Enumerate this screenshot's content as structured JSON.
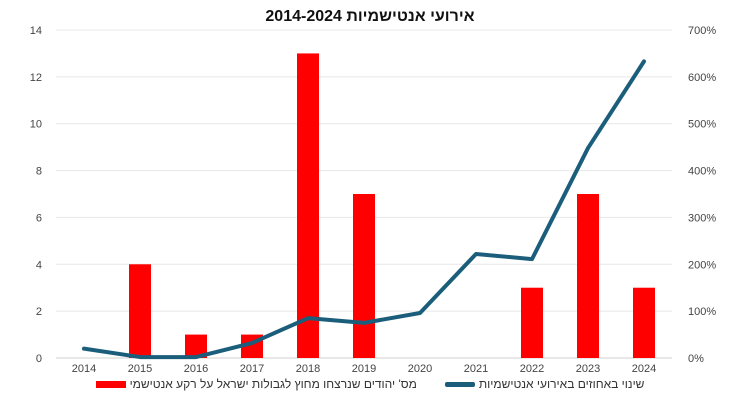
{
  "chart_data": {
    "type": "bar+line",
    "title": "אירועי אנטישמיות 2014-2024",
    "categories": [
      "2014",
      "2015",
      "2016",
      "2017",
      "2018",
      "2019",
      "2020",
      "2021",
      "2022",
      "2023",
      "2024"
    ],
    "series": [
      {
        "name": "מס' יהודים שנרצחו מחוץ לגבולות ישראל על רקע אנטישמי",
        "type": "bar",
        "axis": "left",
        "color": "#ff0000",
        "values": [
          0,
          4,
          1,
          1,
          13,
          7,
          0,
          0,
          3,
          7,
          3
        ]
      },
      {
        "name": "שינוי באחוזים באירועי אנטישמיות",
        "type": "line",
        "axis": "right",
        "color": "#1b5e7b",
        "values": [
          20,
          2,
          2,
          32,
          85,
          75,
          96,
          222,
          211,
          448,
          633
        ]
      }
    ],
    "left_axis": {
      "ylim": [
        0,
        14
      ],
      "ticks": [
        "0",
        "2",
        "4",
        "6",
        "8",
        "10",
        "12",
        "14"
      ]
    },
    "right_axis": {
      "ylim": [
        0,
        700
      ],
      "ticks": [
        "0%",
        "100%",
        "200%",
        "300%",
        "400%",
        "500%",
        "600%",
        "700%"
      ]
    },
    "grid": true,
    "legend_position": "bottom"
  }
}
